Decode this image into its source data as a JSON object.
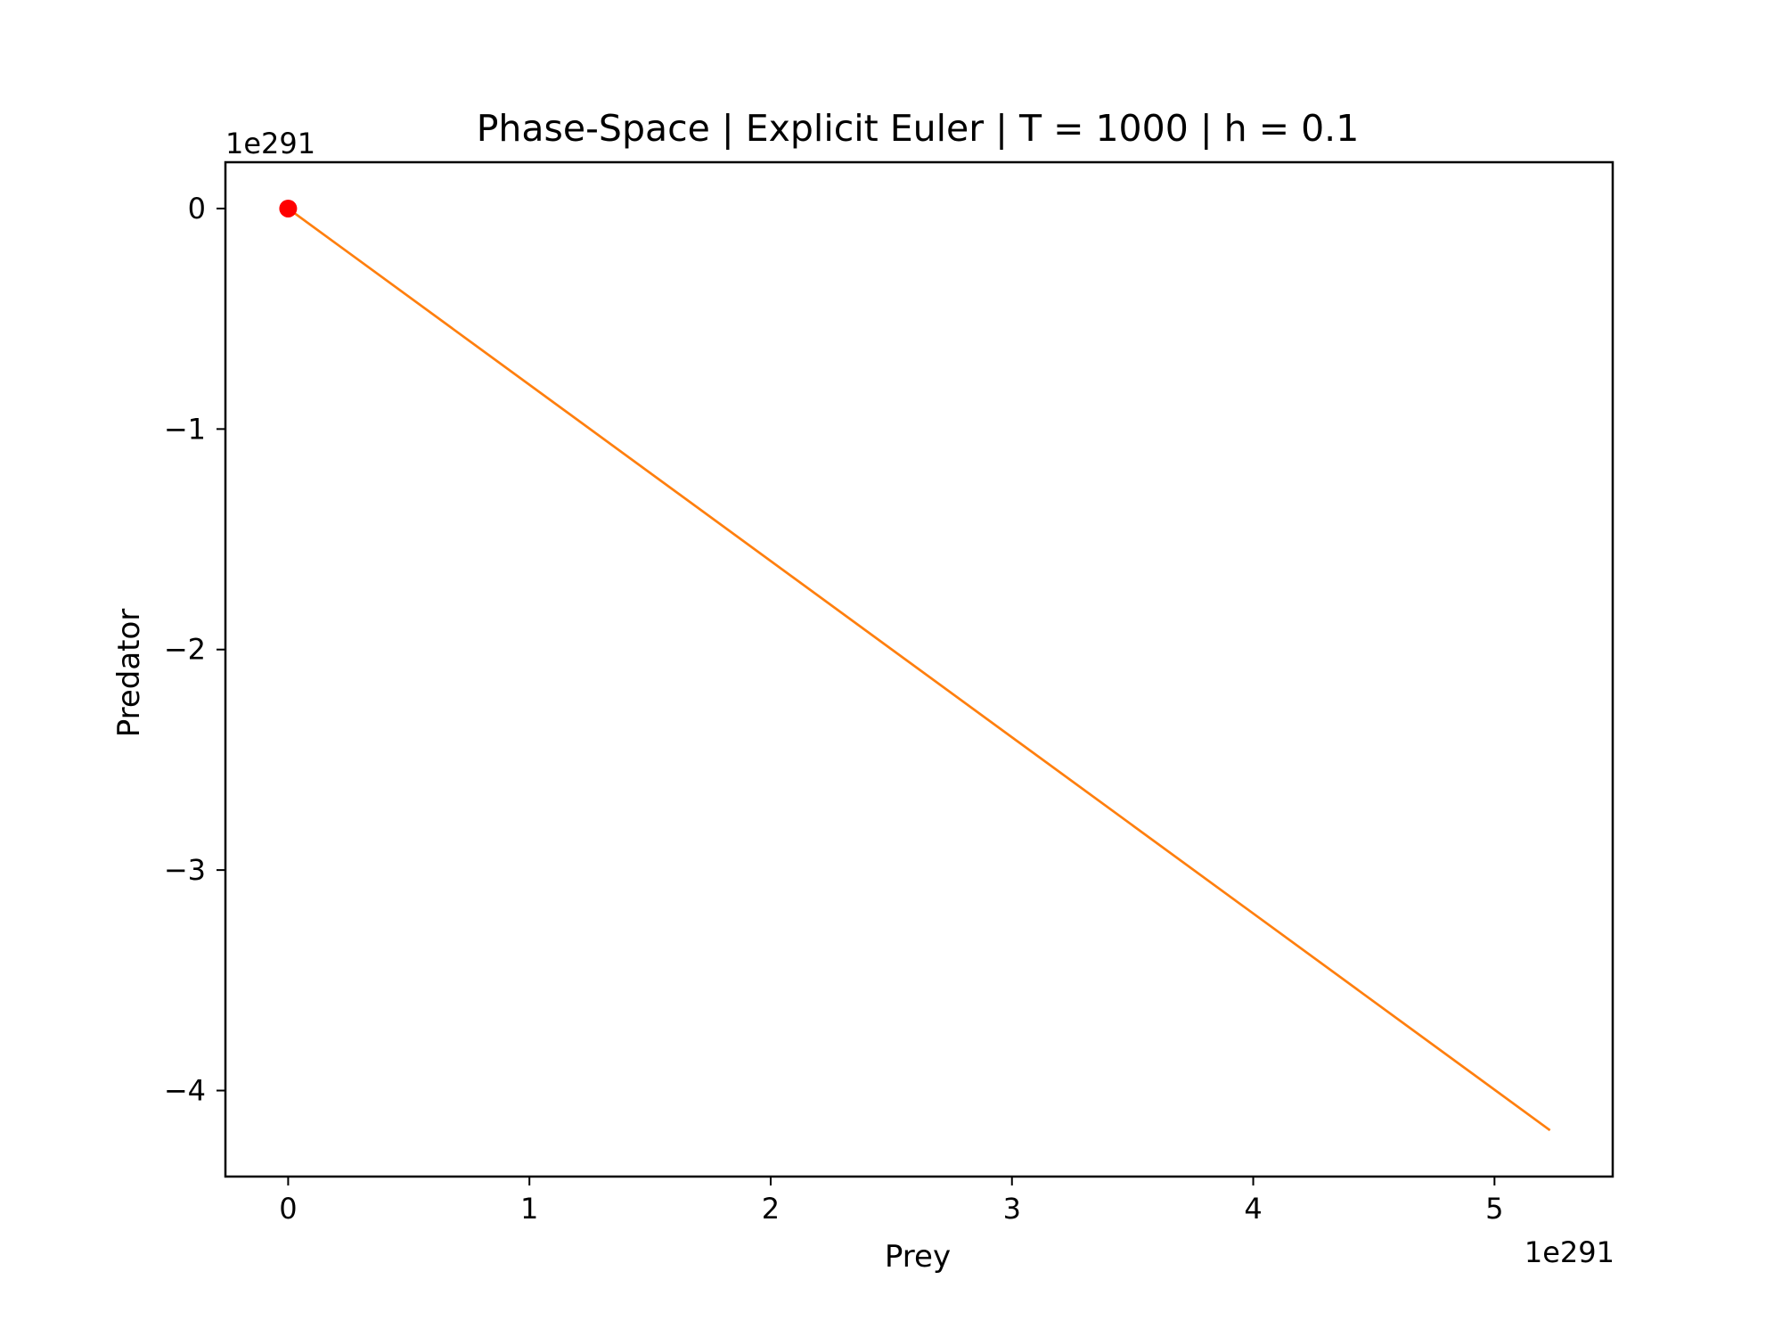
{
  "chart_data": {
    "type": "line",
    "title": "Phase-Space | Explicit Euler | T = 1000 | h = 0.1",
    "xlabel": "Prey",
    "ylabel": "Predator",
    "x_offset_label": "1e291",
    "y_offset_label": "1e291",
    "xlim": [
      -0.26,
      5.49
    ],
    "ylim": [
      -4.39,
      0.21
    ],
    "x_ticks": [
      0,
      1,
      2,
      3,
      4,
      5
    ],
    "x_tick_labels": [
      "0",
      "1",
      "2",
      "3",
      "4",
      "5"
    ],
    "y_ticks": [
      0,
      -1,
      -2,
      -3,
      -4
    ],
    "y_tick_labels": [
      "0",
      "−1",
      "−2",
      "−3",
      "−4"
    ],
    "grid": false,
    "series": [
      {
        "color": "#ff7f0e",
        "x": [
          0,
          5.23
        ],
        "y": [
          0,
          -4.18
        ]
      }
    ],
    "start_marker": {
      "x": 0,
      "y": 0,
      "color": "#ff0000"
    }
  }
}
